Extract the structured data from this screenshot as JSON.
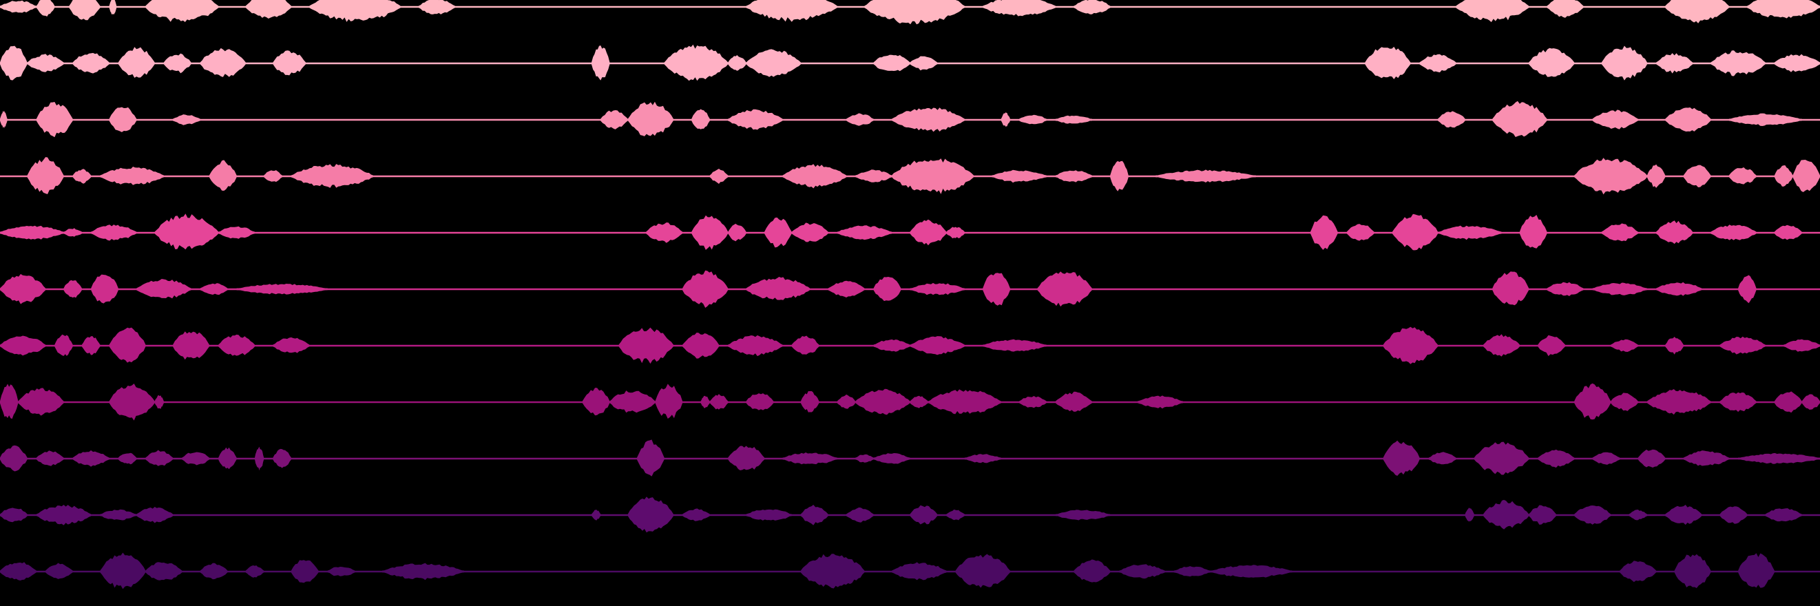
{
  "background_color": "#000000",
  "tracks": [
    {
      "id": "track-1",
      "color": "#FFB6C1",
      "segments": [
        [
          0.0,
          0.02,
          0.35
        ],
        [
          0.02,
          0.03,
          0.55
        ],
        [
          0.038,
          0.055,
          0.8
        ],
        [
          0.06,
          0.064,
          0.5
        ],
        [
          0.08,
          0.12,
          0.9
        ],
        [
          0.135,
          0.16,
          0.7
        ],
        [
          0.17,
          0.22,
          0.85
        ],
        [
          0.23,
          0.25,
          0.45
        ],
        [
          0.41,
          0.46,
          0.8
        ],
        [
          0.475,
          0.53,
          1.0
        ],
        [
          0.54,
          0.58,
          0.55
        ],
        [
          0.59,
          0.61,
          0.45
        ],
        [
          0.8,
          0.84,
          0.85
        ],
        [
          0.85,
          0.87,
          0.6
        ],
        [
          0.915,
          0.95,
          0.95
        ],
        [
          0.96,
          1.0,
          0.7
        ]
      ]
    },
    {
      "id": "track-2",
      "color": "#FFB0C4",
      "segments": [
        [
          0.0,
          0.015,
          1.0
        ],
        [
          0.015,
          0.035,
          0.5
        ],
        [
          0.04,
          0.06,
          0.6
        ],
        [
          0.065,
          0.085,
          0.9
        ],
        [
          0.09,
          0.105,
          0.55
        ],
        [
          0.11,
          0.135,
          0.8
        ],
        [
          0.15,
          0.168,
          0.7
        ],
        [
          0.325,
          0.335,
          1.0
        ],
        [
          0.365,
          0.4,
          1.0
        ],
        [
          0.4,
          0.41,
          0.45
        ],
        [
          0.41,
          0.44,
          0.75
        ],
        [
          0.48,
          0.5,
          0.55
        ],
        [
          0.5,
          0.515,
          0.4
        ],
        [
          0.75,
          0.775,
          1.0
        ],
        [
          0.78,
          0.8,
          0.5
        ],
        [
          0.84,
          0.865,
          0.8
        ],
        [
          0.88,
          0.905,
          0.95
        ],
        [
          0.91,
          0.93,
          0.55
        ],
        [
          0.94,
          0.97,
          0.7
        ],
        [
          0.975,
          1.0,
          0.5
        ]
      ]
    },
    {
      "id": "track-3",
      "color": "#F98FB0",
      "segments": [
        [
          0.0,
          0.004,
          0.5
        ],
        [
          0.02,
          0.04,
          0.95
        ],
        [
          0.06,
          0.075,
          0.75
        ],
        [
          0.095,
          0.11,
          0.3
        ],
        [
          0.33,
          0.345,
          0.55
        ],
        [
          0.345,
          0.37,
          1.0
        ],
        [
          0.38,
          0.39,
          0.6
        ],
        [
          0.4,
          0.43,
          0.55
        ],
        [
          0.465,
          0.48,
          0.35
        ],
        [
          0.49,
          0.53,
          0.7
        ],
        [
          0.55,
          0.555,
          0.4
        ],
        [
          0.56,
          0.575,
          0.3
        ],
        [
          0.58,
          0.6,
          0.25
        ],
        [
          0.79,
          0.805,
          0.5
        ],
        [
          0.82,
          0.85,
          1.0
        ],
        [
          0.875,
          0.9,
          0.55
        ],
        [
          0.915,
          0.94,
          0.7
        ],
        [
          0.95,
          0.99,
          0.35
        ]
      ]
    },
    {
      "id": "track-4",
      "color": "#F57CA7",
      "segments": [
        [
          0.015,
          0.035,
          1.0
        ],
        [
          0.04,
          0.05,
          0.4
        ],
        [
          0.055,
          0.09,
          0.5
        ],
        [
          0.115,
          0.13,
          0.85
        ],
        [
          0.145,
          0.155,
          0.35
        ],
        [
          0.16,
          0.205,
          0.65
        ],
        [
          0.39,
          0.4,
          0.4
        ],
        [
          0.43,
          0.465,
          0.65
        ],
        [
          0.47,
          0.49,
          0.35
        ],
        [
          0.49,
          0.535,
          1.0
        ],
        [
          0.545,
          0.575,
          0.35
        ],
        [
          0.58,
          0.6,
          0.35
        ],
        [
          0.61,
          0.62,
          0.9
        ],
        [
          0.635,
          0.69,
          0.35
        ],
        [
          0.865,
          0.905,
          1.0
        ],
        [
          0.905,
          0.915,
          0.65
        ],
        [
          0.925,
          0.94,
          0.7
        ],
        [
          0.95,
          0.965,
          0.5
        ],
        [
          0.975,
          0.985,
          0.6
        ],
        [
          0.985,
          1.0,
          1.0
        ]
      ]
    },
    {
      "id": "track-5",
      "color": "#E54598",
      "segments": [
        [
          0.0,
          0.035,
          0.4
        ],
        [
          0.035,
          0.045,
          0.25
        ],
        [
          0.05,
          0.075,
          0.45
        ],
        [
          0.085,
          0.12,
          1.0
        ],
        [
          0.12,
          0.14,
          0.35
        ],
        [
          0.355,
          0.375,
          0.55
        ],
        [
          0.38,
          0.4,
          1.0
        ],
        [
          0.4,
          0.41,
          0.5
        ],
        [
          0.42,
          0.435,
          0.85
        ],
        [
          0.435,
          0.455,
          0.55
        ],
        [
          0.46,
          0.49,
          0.4
        ],
        [
          0.5,
          0.52,
          0.7
        ],
        [
          0.52,
          0.53,
          0.35
        ],
        [
          0.72,
          0.735,
          1.0
        ],
        [
          0.74,
          0.755,
          0.5
        ],
        [
          0.765,
          0.79,
          1.0
        ],
        [
          0.79,
          0.825,
          0.4
        ],
        [
          0.835,
          0.85,
          1.0
        ],
        [
          0.88,
          0.9,
          0.5
        ],
        [
          0.91,
          0.93,
          0.65
        ],
        [
          0.94,
          0.965,
          0.45
        ],
        [
          0.975,
          0.99,
          0.45
        ]
      ]
    },
    {
      "id": "track-6",
      "color": "#CE2D8C",
      "segments": [
        [
          0.0,
          0.025,
          0.8
        ],
        [
          0.035,
          0.045,
          0.55
        ],
        [
          0.05,
          0.065,
          0.9
        ],
        [
          0.075,
          0.105,
          0.55
        ],
        [
          0.11,
          0.125,
          0.35
        ],
        [
          0.13,
          0.18,
          0.3
        ],
        [
          0.375,
          0.4,
          1.0
        ],
        [
          0.41,
          0.445,
          0.65
        ],
        [
          0.455,
          0.475,
          0.45
        ],
        [
          0.48,
          0.495,
          0.75
        ],
        [
          0.5,
          0.53,
          0.35
        ],
        [
          0.54,
          0.555,
          1.0
        ],
        [
          0.57,
          0.6,
          1.0
        ],
        [
          0.82,
          0.84,
          1.0
        ],
        [
          0.85,
          0.87,
          0.4
        ],
        [
          0.875,
          0.905,
          0.35
        ],
        [
          0.91,
          0.935,
          0.4
        ],
        [
          0.955,
          0.965,
          0.75
        ]
      ]
    },
    {
      "id": "track-7",
      "color": "#B21A82",
      "segments": [
        [
          0.0,
          0.025,
          0.55
        ],
        [
          0.03,
          0.04,
          0.65
        ],
        [
          0.045,
          0.055,
          0.55
        ],
        [
          0.06,
          0.08,
          1.0
        ],
        [
          0.095,
          0.115,
          0.85
        ],
        [
          0.12,
          0.14,
          0.6
        ],
        [
          0.15,
          0.17,
          0.45
        ],
        [
          0.34,
          0.37,
          1.0
        ],
        [
          0.375,
          0.395,
          0.75
        ],
        [
          0.4,
          0.43,
          0.55
        ],
        [
          0.435,
          0.45,
          0.55
        ],
        [
          0.48,
          0.5,
          0.35
        ],
        [
          0.5,
          0.53,
          0.5
        ],
        [
          0.54,
          0.575,
          0.35
        ],
        [
          0.76,
          0.79,
          1.0
        ],
        [
          0.815,
          0.835,
          0.6
        ],
        [
          0.845,
          0.86,
          0.6
        ],
        [
          0.885,
          0.9,
          0.35
        ],
        [
          0.915,
          0.925,
          0.5
        ],
        [
          0.945,
          0.97,
          0.5
        ],
        [
          0.98,
          1.0,
          0.35
        ]
      ]
    },
    {
      "id": "track-8",
      "color": "#9A1278",
      "segments": [
        [
          0.0,
          0.01,
          1.0
        ],
        [
          0.01,
          0.035,
          0.75
        ],
        [
          0.06,
          0.085,
          1.0
        ],
        [
          0.085,
          0.09,
          0.4
        ],
        [
          0.32,
          0.335,
          0.8
        ],
        [
          0.335,
          0.36,
          0.65
        ],
        [
          0.36,
          0.375,
          1.0
        ],
        [
          0.385,
          0.39,
          0.35
        ],
        [
          0.39,
          0.4,
          0.45
        ],
        [
          0.41,
          0.425,
          0.55
        ],
        [
          0.44,
          0.45,
          0.6
        ],
        [
          0.46,
          0.47,
          0.4
        ],
        [
          0.47,
          0.5,
          0.7
        ],
        [
          0.5,
          0.51,
          0.35
        ],
        [
          0.51,
          0.55,
          0.7
        ],
        [
          0.56,
          0.575,
          0.35
        ],
        [
          0.58,
          0.6,
          0.55
        ],
        [
          0.625,
          0.65,
          0.35
        ],
        [
          0.865,
          0.885,
          1.0
        ],
        [
          0.885,
          0.9,
          0.5
        ],
        [
          0.905,
          0.94,
          0.7
        ],
        [
          0.945,
          0.965,
          0.55
        ],
        [
          0.975,
          0.99,
          0.6
        ],
        [
          0.99,
          1.0,
          0.45
        ]
      ]
    },
    {
      "id": "track-9",
      "color": "#7C1175",
      "segments": [
        [
          0.0,
          0.015,
          0.7
        ],
        [
          0.02,
          0.035,
          0.45
        ],
        [
          0.04,
          0.06,
          0.45
        ],
        [
          0.065,
          0.075,
          0.35
        ],
        [
          0.08,
          0.095,
          0.45
        ],
        [
          0.1,
          0.115,
          0.4
        ],
        [
          0.12,
          0.13,
          0.6
        ],
        [
          0.14,
          0.145,
          0.65
        ],
        [
          0.15,
          0.16,
          0.55
        ],
        [
          0.35,
          0.365,
          1.0
        ],
        [
          0.4,
          0.42,
          0.75
        ],
        [
          0.43,
          0.46,
          0.35
        ],
        [
          0.47,
          0.48,
          0.25
        ],
        [
          0.48,
          0.5,
          0.3
        ],
        [
          0.53,
          0.55,
          0.25
        ],
        [
          0.76,
          0.78,
          1.0
        ],
        [
          0.785,
          0.8,
          0.35
        ],
        [
          0.81,
          0.84,
          0.9
        ],
        [
          0.845,
          0.865,
          0.5
        ],
        [
          0.875,
          0.89,
          0.35
        ],
        [
          0.9,
          0.915,
          0.55
        ],
        [
          0.925,
          0.95,
          0.45
        ],
        [
          0.955,
          1.0,
          0.3
        ]
      ]
    },
    {
      "id": "track-10",
      "color": "#5E0C6E",
      "segments": [
        [
          0.0,
          0.015,
          0.45
        ],
        [
          0.02,
          0.05,
          0.55
        ],
        [
          0.055,
          0.075,
          0.3
        ],
        [
          0.075,
          0.095,
          0.45
        ],
        [
          0.325,
          0.33,
          0.3
        ],
        [
          0.345,
          0.37,
          1.0
        ],
        [
          0.375,
          0.39,
          0.35
        ],
        [
          0.41,
          0.435,
          0.35
        ],
        [
          0.44,
          0.455,
          0.55
        ],
        [
          0.465,
          0.48,
          0.4
        ],
        [
          0.5,
          0.515,
          0.55
        ],
        [
          0.52,
          0.53,
          0.3
        ],
        [
          0.58,
          0.61,
          0.3
        ],
        [
          0.805,
          0.81,
          0.4
        ],
        [
          0.815,
          0.84,
          0.8
        ],
        [
          0.84,
          0.855,
          0.55
        ],
        [
          0.865,
          0.885,
          0.55
        ],
        [
          0.895,
          0.905,
          0.3
        ],
        [
          0.915,
          0.935,
          0.55
        ],
        [
          0.945,
          0.96,
          0.5
        ],
        [
          0.97,
          0.99,
          0.4
        ]
      ]
    },
    {
      "id": "track-11",
      "color": "#4B0A62",
      "segments": [
        [
          0.0,
          0.02,
          0.55
        ],
        [
          0.025,
          0.04,
          0.45
        ],
        [
          0.055,
          0.08,
          1.0
        ],
        [
          0.08,
          0.1,
          0.55
        ],
        [
          0.11,
          0.125,
          0.45
        ],
        [
          0.135,
          0.145,
          0.35
        ],
        [
          0.16,
          0.175,
          0.7
        ],
        [
          0.18,
          0.195,
          0.3
        ],
        [
          0.21,
          0.255,
          0.45
        ],
        [
          0.44,
          0.475,
          1.0
        ],
        [
          0.49,
          0.52,
          0.5
        ],
        [
          0.525,
          0.555,
          0.95
        ],
        [
          0.59,
          0.61,
          0.65
        ],
        [
          0.615,
          0.64,
          0.4
        ],
        [
          0.645,
          0.665,
          0.3
        ],
        [
          0.665,
          0.71,
          0.35
        ],
        [
          0.89,
          0.91,
          0.6
        ],
        [
          0.92,
          0.94,
          1.0
        ],
        [
          0.955,
          0.975,
          1.0
        ]
      ]
    }
  ]
}
